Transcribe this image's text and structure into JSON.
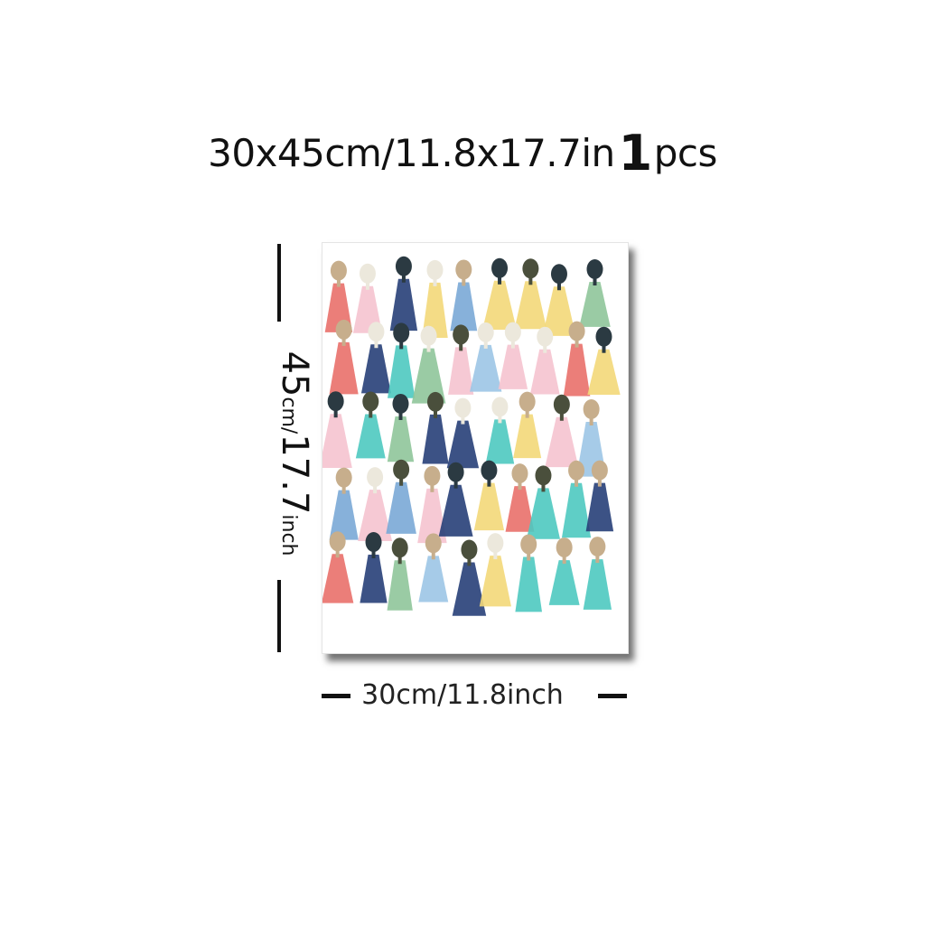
{
  "title": {
    "dimensions": "30x45cm/11.8x17.7in",
    "quantity": "1",
    "unit": "pcs"
  },
  "height_label": {
    "value": "45",
    "rest": "cm/",
    "value2": "17.7",
    "rest2": "inch"
  },
  "width_label": "30cm/11.8inch",
  "colors": {
    "palette": [
      "#e9706a",
      "#f3d879",
      "#4ec9c0",
      "#273f78",
      "#f5c3cf",
      "#9cc5e6",
      "#8fc59a",
      "#7aa9d6"
    ],
    "heads": [
      "#2b3a42",
      "#4a4f3c",
      "#c7ae8c",
      "#ece8dc"
    ]
  }
}
